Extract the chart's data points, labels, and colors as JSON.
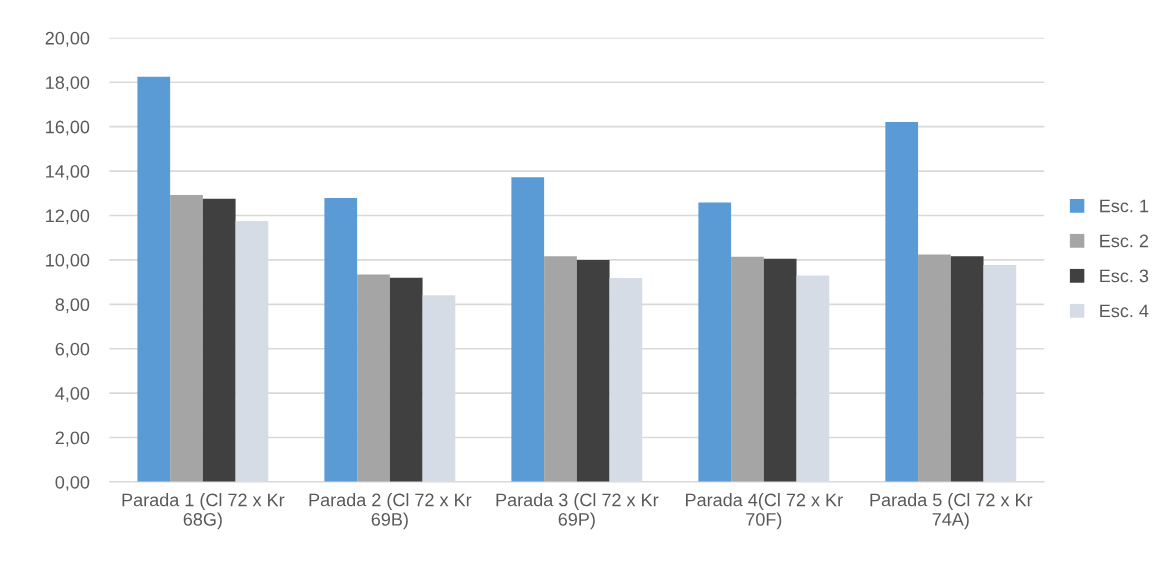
{
  "chart_data": {
    "type": "bar",
    "categories": [
      "Parada 1 (Cl 72 x Kr 68G)",
      "Parada 2 (Cl 72 x Kr 69B)",
      "Parada 3 (Cl 72 x Kr 69P)",
      "Parada 4(Cl 72 x Kr 70F)",
      "Parada 5 (Cl 72 x Kr 74A)"
    ],
    "series": [
      {
        "name": "Esc. 1",
        "color": "#5b9bd5",
        "values": [
          18.25,
          12.79,
          13.72,
          12.58,
          16.21
        ]
      },
      {
        "name": "Esc. 2",
        "color": "#a5a5a5",
        "values": [
          12.92,
          9.34,
          10.16,
          10.14,
          10.24
        ]
      },
      {
        "name": "Esc. 3",
        "color": "#404040",
        "values": [
          12.75,
          9.2,
          10.0,
          10.05,
          10.17
        ]
      },
      {
        "name": "Esc. 4",
        "color": "#d6dce5",
        "values": [
          11.75,
          8.41,
          9.18,
          9.3,
          9.77
        ]
      }
    ],
    "ylim": [
      0,
      20
    ],
    "yticks": [
      {
        "value": 0,
        "label": "0,00"
      },
      {
        "value": 2,
        "label": "2,00"
      },
      {
        "value": 4,
        "label": "4,00"
      },
      {
        "value": 6,
        "label": "6,00"
      },
      {
        "value": 8,
        "label": "8,00"
      },
      {
        "value": 10,
        "label": "10,00"
      },
      {
        "value": 12,
        "label": "12,00"
      },
      {
        "value": 14,
        "label": "14,00"
      },
      {
        "value": 16,
        "label": "16,00"
      },
      {
        "value": 18,
        "label": "18,00"
      },
      {
        "value": 20,
        "label": "20,00"
      }
    ],
    "grid": "y",
    "legend": "right"
  }
}
